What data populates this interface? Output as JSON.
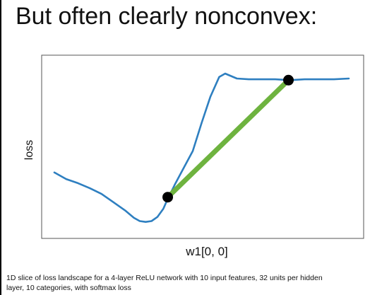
{
  "slide": {
    "title": "But often clearly nonconvex:",
    "caption": "1D slice of loss landscape for a 4-layer ReLU network with 10 input features, 32 units per hidden layer, 10 categories, with softmax loss"
  },
  "chart_data": {
    "type": "line",
    "xlabel": "w1[0, 0]",
    "ylabel": "loss",
    "ylim": [
      0,
      100
    ],
    "grid": false,
    "series": [
      {
        "color": "#2e7fc0",
        "points": [
          [
            0.0,
            37
          ],
          [
            0.04,
            33
          ],
          [
            0.08,
            30.5
          ],
          [
            0.12,
            27.5
          ],
          [
            0.16,
            24
          ],
          [
            0.2,
            19
          ],
          [
            0.24,
            14
          ],
          [
            0.27,
            9.5
          ],
          [
            0.29,
            7.5
          ],
          [
            0.31,
            7
          ],
          [
            0.33,
            7.5
          ],
          [
            0.35,
            10
          ],
          [
            0.37,
            15
          ],
          [
            0.38,
            19
          ],
          [
            0.41,
            30
          ],
          [
            0.44,
            40
          ],
          [
            0.47,
            50
          ],
          [
            0.5,
            67
          ],
          [
            0.53,
            83
          ],
          [
            0.56,
            95
          ],
          [
            0.58,
            97
          ],
          [
            0.6,
            95.5
          ],
          [
            0.62,
            94
          ],
          [
            0.66,
            93.5
          ],
          [
            0.7,
            93.5
          ],
          [
            0.75,
            93.5
          ],
          [
            0.8,
            93
          ],
          [
            0.85,
            93.5
          ],
          [
            0.9,
            93.5
          ],
          [
            0.95,
            93.5
          ],
          [
            1.0,
            94
          ]
        ]
      }
    ],
    "chord": {
      "color": "#6eb33f",
      "start": [
        0.385,
        22
      ],
      "end": [
        0.795,
        93
      ]
    },
    "markers": [
      {
        "x": 0.385,
        "y": 22
      },
      {
        "x": 0.795,
        "y": 93
      }
    ]
  }
}
